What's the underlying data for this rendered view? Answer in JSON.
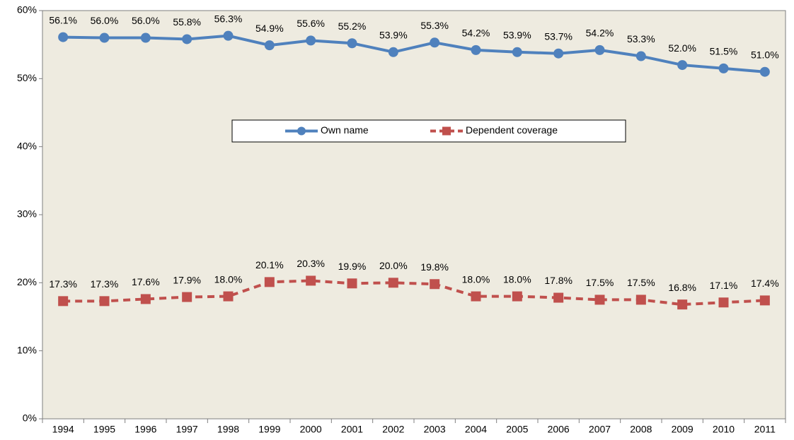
{
  "chart_data": {
    "type": "line",
    "categories": [
      "1994",
      "1995",
      "1996",
      "1997",
      "1998",
      "1999",
      "2000",
      "2001",
      "2002",
      "2003",
      "2004",
      "2005",
      "2006",
      "2007",
      "2008",
      "2009",
      "2010",
      "2011"
    ],
    "series": [
      {
        "name": "Own name",
        "color": "#4f81bd",
        "marker": "circle",
        "dashed": false,
        "values": [
          56.1,
          56.0,
          56.0,
          55.8,
          56.3,
          54.9,
          55.6,
          55.2,
          53.9,
          55.3,
          54.2,
          53.9,
          53.7,
          54.2,
          53.3,
          52.0,
          51.5,
          51.0
        ],
        "value_labels": [
          "56.1%",
          "56.0%",
          "56.0%",
          "55.8%",
          "56.3%",
          "54.9%",
          "55.6%",
          "55.2%",
          "53.9%",
          "55.3%",
          "54.2%",
          "53.9%",
          "53.7%",
          "54.2%",
          "53.3%",
          "52.0%",
          "51.5%",
          "51.0%"
        ]
      },
      {
        "name": "Dependent coverage",
        "color": "#c0504d",
        "marker": "square",
        "dashed": true,
        "values": [
          17.3,
          17.3,
          17.6,
          17.9,
          18.0,
          20.1,
          20.3,
          19.9,
          20.0,
          19.8,
          18.0,
          18.0,
          17.8,
          17.5,
          17.5,
          16.8,
          17.1,
          17.4
        ],
        "value_labels": [
          "17.3%",
          "17.3%",
          "17.6%",
          "17.9%",
          "18.0%",
          "20.1%",
          "20.3%",
          "19.9%",
          "20.0%",
          "19.8%",
          "18.0%",
          "18.0%",
          "17.8%",
          "17.5%",
          "17.5%",
          "16.8%",
          "17.1%",
          "17.4%"
        ]
      }
    ],
    "ylim": [
      0,
      60
    ],
    "yticks": [
      {
        "value": 0,
        "label": "0%"
      },
      {
        "value": 10,
        "label": "10%"
      },
      {
        "value": 20,
        "label": "20%"
      },
      {
        "value": 30,
        "label": "30%"
      },
      {
        "value": 40,
        "label": "40%"
      },
      {
        "value": 50,
        "label": "50%"
      },
      {
        "value": 60,
        "label": "60%"
      }
    ],
    "legend": "center",
    "plot_background": "#eeebe0"
  }
}
